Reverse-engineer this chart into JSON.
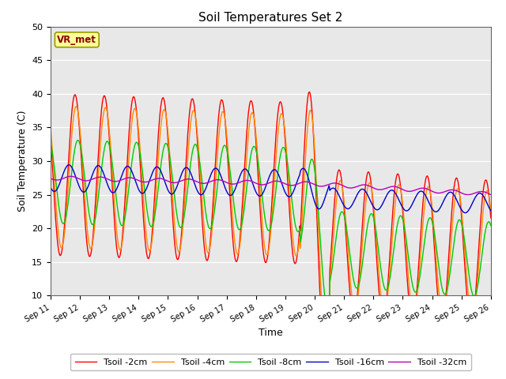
{
  "title": "Soil Temperatures Set 2",
  "xlabel": "Time",
  "ylabel": "Soil Temperature (C)",
  "ylim": [
    10,
    50
  ],
  "yticks": [
    10,
    15,
    20,
    25,
    30,
    35,
    40,
    45,
    50
  ],
  "xtick_labels": [
    "Sep 11",
    "Sep 12",
    "Sep 13",
    "Sep 14",
    "Sep 15",
    "Sep 16",
    "Sep 17",
    "Sep 18",
    "Sep 19",
    "Sep 20",
    "Sep 21",
    "Sep 22",
    "Sep 23",
    "Sep 24",
    "Sep 25",
    "Sep 26"
  ],
  "background_color": "#e8e8e8",
  "legend_label": "VR_met",
  "series_colors": {
    "Tsoil -2cm": "#ff0000",
    "Tsoil -4cm": "#ff8c00",
    "Tsoil -8cm": "#00cc00",
    "Tsoil -16cm": "#0000cc",
    "Tsoil -32cm": "#bb00bb"
  },
  "series_labels": [
    "Tsoil -2cm",
    "Tsoil -4cm",
    "Tsoil -8cm",
    "Tsoil -16cm",
    "Tsoil -32cm"
  ],
  "figsize": [
    6.4,
    4.8
  ],
  "dpi": 100
}
